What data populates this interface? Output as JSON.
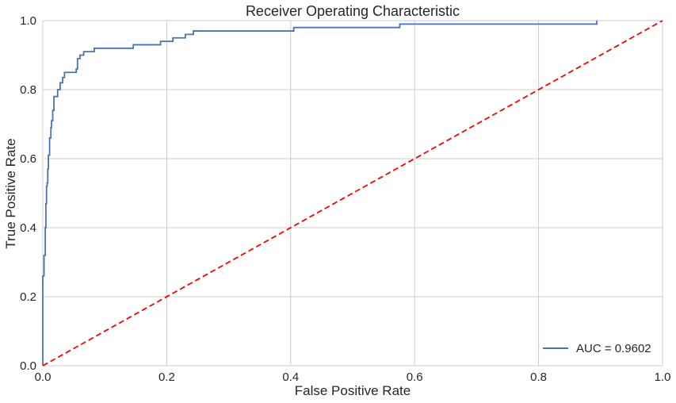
{
  "chart_data": {
    "type": "line",
    "title": "Receiver Operating Characteristic",
    "xlabel": "False Positive Rate",
    "ylabel": "True Positive Rate",
    "xlim": [
      0,
      1
    ],
    "ylim": [
      0,
      1
    ],
    "xticks": [
      "0.0",
      "0.2",
      "0.4",
      "0.6",
      "0.8",
      "1.0"
    ],
    "yticks": [
      "0.0",
      "0.2",
      "0.4",
      "0.6",
      "0.8",
      "1.0"
    ],
    "grid": true,
    "legend_position": "lower-right",
    "series": [
      {
        "name": "AUC = 0.9602",
        "color": "#4c72b0",
        "style": "solid",
        "step": true,
        "points": [
          [
            0.0,
            0.0
          ],
          [
            0.0,
            0.26
          ],
          [
            0.002,
            0.26
          ],
          [
            0.002,
            0.32
          ],
          [
            0.004,
            0.32
          ],
          [
            0.004,
            0.4
          ],
          [
            0.005,
            0.4
          ],
          [
            0.005,
            0.47
          ],
          [
            0.006,
            0.47
          ],
          [
            0.006,
            0.52
          ],
          [
            0.007,
            0.52
          ],
          [
            0.007,
            0.53
          ],
          [
            0.008,
            0.53
          ],
          [
            0.008,
            0.57
          ],
          [
            0.009,
            0.57
          ],
          [
            0.009,
            0.61
          ],
          [
            0.011,
            0.61
          ],
          [
            0.011,
            0.66
          ],
          [
            0.013,
            0.66
          ],
          [
            0.013,
            0.69
          ],
          [
            0.014,
            0.69
          ],
          [
            0.014,
            0.71
          ],
          [
            0.016,
            0.71
          ],
          [
            0.016,
            0.74
          ],
          [
            0.018,
            0.74
          ],
          [
            0.018,
            0.78
          ],
          [
            0.024,
            0.78
          ],
          [
            0.024,
            0.8
          ],
          [
            0.028,
            0.8
          ],
          [
            0.028,
            0.82
          ],
          [
            0.032,
            0.82
          ],
          [
            0.032,
            0.835
          ],
          [
            0.035,
            0.835
          ],
          [
            0.035,
            0.85
          ],
          [
            0.054,
            0.85
          ],
          [
            0.054,
            0.86
          ],
          [
            0.056,
            0.86
          ],
          [
            0.056,
            0.89
          ],
          [
            0.06,
            0.89
          ],
          [
            0.06,
            0.9
          ],
          [
            0.066,
            0.9
          ],
          [
            0.066,
            0.91
          ],
          [
            0.083,
            0.91
          ],
          [
            0.083,
            0.92
          ],
          [
            0.146,
            0.92
          ],
          [
            0.146,
            0.93
          ],
          [
            0.19,
            0.93
          ],
          [
            0.19,
            0.94
          ],
          [
            0.21,
            0.94
          ],
          [
            0.21,
            0.95
          ],
          [
            0.23,
            0.95
          ],
          [
            0.23,
            0.96
          ],
          [
            0.243,
            0.96
          ],
          [
            0.243,
            0.97
          ],
          [
            0.405,
            0.97
          ],
          [
            0.405,
            0.98
          ],
          [
            0.576,
            0.98
          ],
          [
            0.576,
            0.99
          ],
          [
            0.894,
            0.99
          ],
          [
            0.894,
            1.0
          ]
        ]
      },
      {
        "name": "",
        "color": "#ff0000",
        "style": "dashed",
        "step": false,
        "points": [
          [
            0,
            0
          ],
          [
            1,
            1
          ]
        ]
      }
    ]
  }
}
